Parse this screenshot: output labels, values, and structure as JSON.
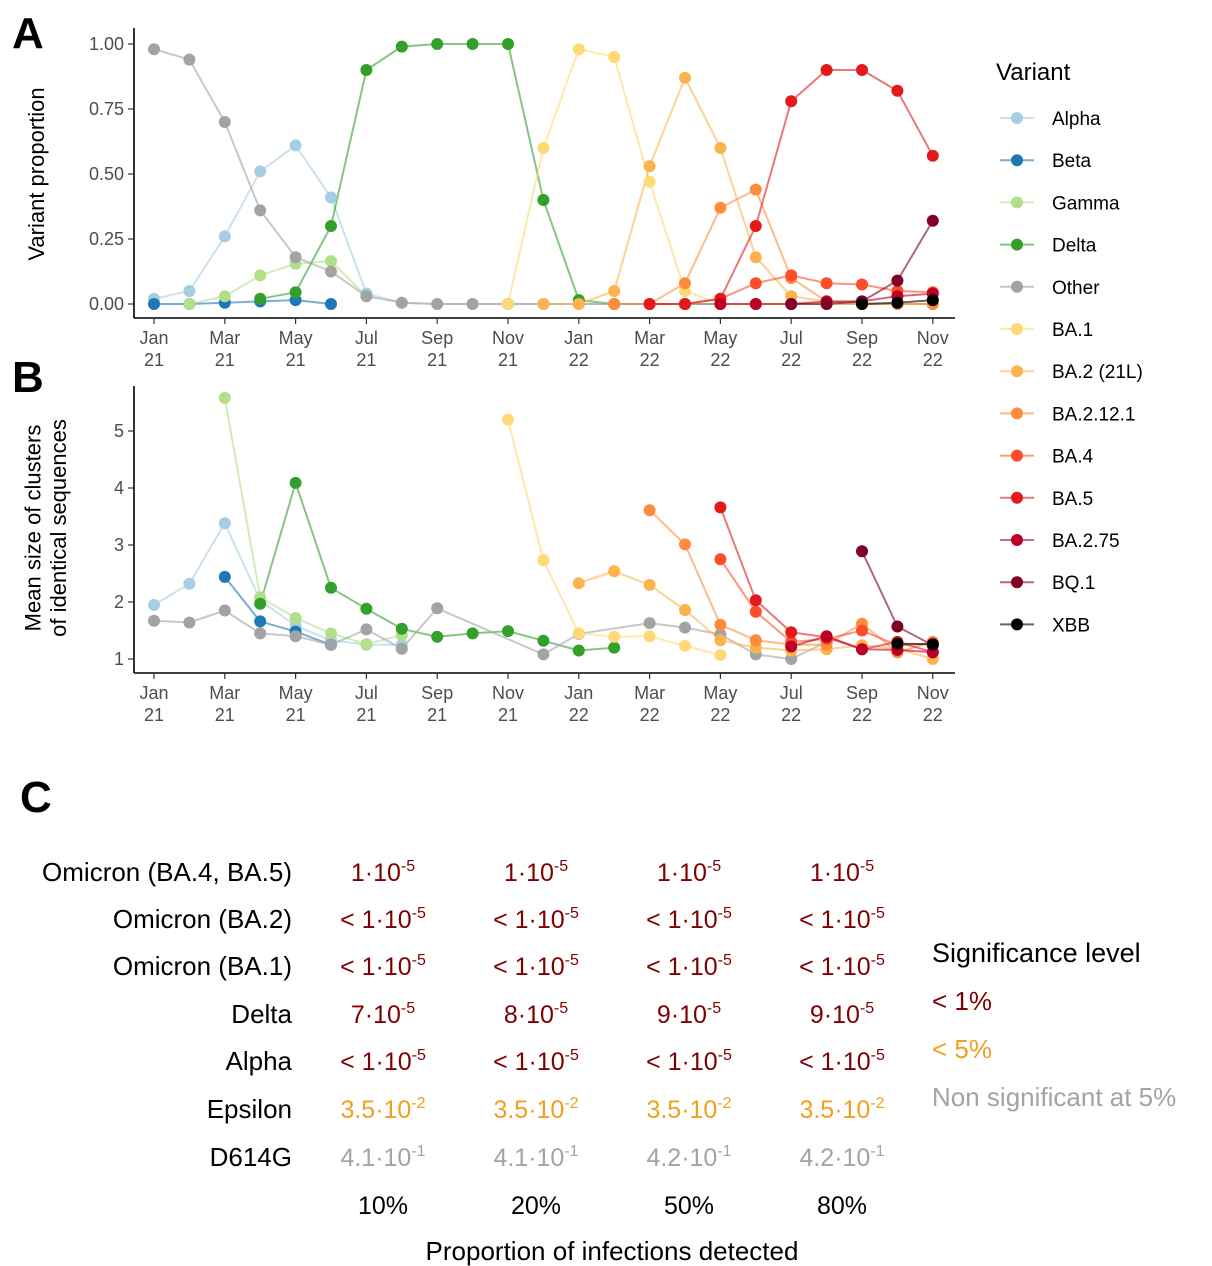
{
  "colors": {
    "Alpha": "#a6cee3",
    "Beta": "#1f78b4",
    "Gamma": "#b2df8a",
    "Delta": "#33a02c",
    "Other": "#a3a3a3",
    "BA.1": "#fed976",
    "BA.2 (21L)": "#feb24c",
    "BA.2.12.1": "#fd8d3c",
    "BA.4": "#fc4e2a",
    "BA.5": "#e31a1c",
    "BA.2.75": "#bd0026",
    "BQ.1": "#800026",
    "XBB": "#000000",
    "sig1": "#7f0000",
    "sig5": "#f0a020",
    "nonsig": "#a3a3a3"
  },
  "panels": {
    "a": "A",
    "b": "B",
    "c": "C"
  },
  "months_x": [
    "Jan 21",
    "Feb 21",
    "Mar 21",
    "Apr 21",
    "May 21",
    "Jun 21",
    "Jul 21",
    "Aug 21",
    "Sep 21",
    "Oct 21",
    "Nov 21",
    "Dec 21",
    "Jan 22",
    "Feb 22",
    "Mar 22",
    "Apr 22",
    "May 22",
    "Jun 22",
    "Jul 22",
    "Aug 22",
    "Sep 22",
    "Oct 22",
    "Nov 22"
  ],
  "x_ticks": [
    {
      "line1": "Jan",
      "line2": "21",
      "i": 0
    },
    {
      "line1": "Mar",
      "line2": "21",
      "i": 2
    },
    {
      "line1": "May",
      "line2": "21",
      "i": 4
    },
    {
      "line1": "Jul",
      "line2": "21",
      "i": 6
    },
    {
      "line1": "Sep",
      "line2": "21",
      "i": 8
    },
    {
      "line1": "Nov",
      "line2": "21",
      "i": 10
    },
    {
      "line1": "Jan",
      "line2": "22",
      "i": 12
    },
    {
      "line1": "Mar",
      "line2": "22",
      "i": 14
    },
    {
      "line1": "May",
      "line2": "22",
      "i": 16
    },
    {
      "line1": "Jul",
      "line2": "22",
      "i": 18
    },
    {
      "line1": "Sep",
      "line2": "22",
      "i": 20
    },
    {
      "line1": "Nov",
      "line2": "22",
      "i": 22
    }
  ],
  "legend": {
    "title": "Variant",
    "items": [
      "Alpha",
      "Beta",
      "Gamma",
      "Delta",
      "Other",
      "BA.1",
      "BA.2 (21L)",
      "BA.2.12.1",
      "BA.4",
      "BA.5",
      "BA.2.75",
      "BQ.1",
      "XBB"
    ]
  },
  "chart_data": [
    {
      "type": "line",
      "ylabel": "Variant proportion",
      "ylim": [
        0,
        1
      ],
      "yticks": [
        "0.00",
        "0.25",
        "0.50",
        "0.75",
        "1.00"
      ],
      "series": [
        {
          "name": "Alpha",
          "x": [
            0,
            1,
            2,
            3,
            4,
            5,
            6,
            7,
            8,
            9,
            10,
            11,
            12,
            13,
            14,
            15,
            16,
            17,
            18,
            19,
            20,
            21,
            22
          ],
          "y": [
            0.02,
            0.05,
            0.26,
            0.51,
            0.61,
            0.41,
            0.04,
            0.005,
            0.0,
            0.0,
            0.0,
            0.0,
            0.0,
            0.0,
            0.0,
            0.0,
            0.0,
            0.0,
            0.0,
            0.0,
            0.0,
            0.0,
            0.0
          ]
        },
        {
          "name": "Beta",
          "x": [
            0,
            1,
            2,
            3,
            4,
            5
          ],
          "y": [
            0.0,
            0.0,
            0.005,
            0.01,
            0.015,
            0.0
          ]
        },
        {
          "name": "Gamma",
          "x": [
            1,
            2,
            3,
            4,
            5,
            6
          ],
          "y": [
            0.0,
            0.03,
            0.11,
            0.155,
            0.165,
            0.03
          ]
        },
        {
          "name": "Delta",
          "x": [
            3,
            4,
            5,
            6,
            7,
            8,
            9,
            10,
            11,
            12,
            13,
            14,
            15,
            16,
            17,
            18,
            19,
            20,
            21,
            22
          ],
          "y": [
            0.02,
            0.045,
            0.3,
            0.9,
            0.99,
            1.0,
            1.0,
            1.0,
            0.4,
            0.015,
            0.0,
            0.0,
            0.0,
            0.0,
            0.0,
            0.0,
            0.0,
            0.0,
            0.0,
            0.0
          ]
        },
        {
          "name": "Other",
          "x": [
            0,
            1,
            2,
            3,
            4,
            5,
            6,
            7,
            8,
            9,
            10,
            11,
            12,
            13,
            14,
            15,
            16,
            17,
            18,
            19,
            20,
            21,
            22
          ],
          "y": [
            0.98,
            0.94,
            0.7,
            0.36,
            0.18,
            0.125,
            0.03,
            0.005,
            0.0,
            0.0,
            0.0,
            0.0,
            0.0,
            0.0,
            0.0,
            0.0,
            0.0,
            0.0,
            0.0,
            0.0,
            0.0,
            0.0,
            0.0
          ]
        },
        {
          "name": "BA.1",
          "x": [
            10,
            11,
            12,
            13,
            14,
            15,
            16,
            17,
            18,
            19,
            20,
            21,
            22
          ],
          "y": [
            0.0,
            0.6,
            0.98,
            0.95,
            0.47,
            0.05,
            0.0,
            0.0,
            0.0,
            0.0,
            0.0,
            0.0,
            0.0
          ]
        },
        {
          "name": "BA.2 (21L)",
          "x": [
            11,
            12,
            13,
            14,
            15,
            16,
            17,
            18,
            19,
            20,
            21,
            22
          ],
          "y": [
            0.0,
            0.0,
            0.05,
            0.53,
            0.87,
            0.6,
            0.18,
            0.03,
            0.01,
            0.0,
            0.0,
            0.0
          ]
        },
        {
          "name": "BA.2.12.1",
          "x": [
            13,
            14,
            15,
            16,
            17,
            18,
            19,
            20,
            21,
            22
          ],
          "y": [
            0.0,
            0.0,
            0.08,
            0.37,
            0.44,
            0.1,
            0.01,
            0.0,
            0.0,
            0.0
          ]
        },
        {
          "name": "BA.4",
          "x": [
            14,
            15,
            16,
            17,
            18,
            19,
            20,
            21,
            22
          ],
          "y": [
            0.0,
            0.0,
            0.02,
            0.08,
            0.11,
            0.08,
            0.075,
            0.05,
            0.045
          ]
        },
        {
          "name": "BA.5",
          "x": [
            14,
            15,
            16,
            17,
            18,
            19,
            20,
            21,
            22
          ],
          "y": [
            0.0,
            0.0,
            0.02,
            0.3,
            0.78,
            0.9,
            0.9,
            0.82,
            0.57
          ]
        },
        {
          "name": "BA.2.75",
          "x": [
            16,
            17,
            18,
            19,
            20,
            21,
            22
          ],
          "y": [
            0.0,
            0.0,
            0.0,
            0.01,
            0.01,
            0.03,
            0.04
          ]
        },
        {
          "name": "BQ.1",
          "x": [
            18,
            19,
            20,
            21,
            22
          ],
          "y": [
            0.0,
            0.0,
            0.01,
            0.09,
            0.32
          ]
        },
        {
          "name": "XBB",
          "x": [
            20,
            21,
            22
          ],
          "y": [
            0.0,
            0.005,
            0.015
          ]
        }
      ]
    },
    {
      "type": "line",
      "ylabel": "Mean size of clusters\nof identical sequences",
      "ylim": [
        0.75,
        5.75
      ],
      "yticks": [
        "1",
        "2",
        "3",
        "4",
        "5"
      ],
      "series": [
        {
          "name": "Alpha",
          "x": [
            0,
            1,
            2,
            3,
            4,
            5,
            6,
            7
          ],
          "y": [
            1.95,
            2.32,
            3.38,
            2.03,
            1.58,
            1.33,
            1.25,
            1.25
          ]
        },
        {
          "name": "Beta",
          "x": [
            2,
            3,
            4,
            5
          ],
          "y": [
            2.44,
            1.66,
            1.48,
            1.25
          ]
        },
        {
          "name": "Gamma",
          "x": [
            2,
            3,
            4,
            5,
            6,
            7
          ],
          "y": [
            5.58,
            2.08,
            1.72,
            1.45,
            1.26,
            1.42
          ]
        },
        {
          "name": "Delta",
          "x": [
            3,
            4,
            5,
            6,
            7,
            8,
            9,
            10,
            11,
            12,
            13
          ],
          "y": [
            1.97,
            4.09,
            2.25,
            1.88,
            1.53,
            1.39,
            1.45,
            1.49,
            1.32,
            1.15,
            1.2
          ]
        },
        {
          "name": "Other",
          "x": [
            0,
            1,
            2,
            3,
            4,
            5,
            6,
            7,
            8,
            11,
            12,
            14,
            15,
            16,
            17,
            18,
            19
          ],
          "y": [
            1.67,
            1.64,
            1.85,
            1.45,
            1.4,
            1.25,
            1.52,
            1.18,
            1.89,
            1.08,
            1.44,
            1.63,
            1.55,
            1.43,
            1.08,
            1.0,
            1.3
          ]
        },
        {
          "name": "BA.1",
          "x": [
            10,
            11,
            12,
            13,
            14,
            15,
            16
          ],
          "y": [
            5.2,
            2.73,
            1.45,
            1.39,
            1.4,
            1.23,
            1.07
          ]
        },
        {
          "name": "BA.2 (21L)",
          "x": [
            12,
            13,
            14,
            15,
            16,
            17,
            18,
            19,
            20,
            21,
            22
          ],
          "y": [
            2.33,
            2.54,
            2.3,
            1.86,
            1.33,
            1.2,
            1.15,
            1.17,
            1.24,
            1.18,
            1.0
          ]
        },
        {
          "name": "BA.2.12.1",
          "x": [
            14,
            15,
            16,
            17,
            18,
            19,
            20,
            21,
            22
          ],
          "y": [
            3.61,
            3.01,
            1.6,
            1.33,
            1.25,
            1.25,
            1.62,
            1.12,
            1.3
          ]
        },
        {
          "name": "BA.4",
          "x": [
            16,
            17,
            18,
            19,
            20,
            21,
            22
          ],
          "y": [
            2.75,
            1.83,
            1.3,
            1.35,
            1.5,
            1.24,
            1.27
          ]
        },
        {
          "name": "BA.5",
          "x": [
            16,
            17,
            18,
            19,
            20,
            21,
            22
          ],
          "y": [
            3.66,
            2.03,
            1.47,
            1.38,
            1.17,
            1.3,
            1.12
          ]
        },
        {
          "name": "BA.2.75",
          "x": [
            18,
            19,
            20,
            21,
            22
          ],
          "y": [
            1.22,
            1.4,
            1.17,
            1.16,
            1.12
          ]
        },
        {
          "name": "BQ.1",
          "x": [
            20,
            21,
            22
          ],
          "y": [
            2.89,
            1.57,
            1.24
          ]
        },
        {
          "name": "XBB",
          "x": [
            21,
            22
          ],
          "y": [
            1.27,
            1.26
          ]
        }
      ]
    },
    {
      "type": "table",
      "columns": [
        "10%",
        "20%",
        "50%",
        "80%"
      ],
      "xlabel": "Proportion of infections detected",
      "rows": [
        {
          "label": "Omicron (BA.4, BA.5)",
          "cells": [
            {
              "pre": "",
              "m": "1",
              "e": "-5",
              "sig": "sig1"
            },
            {
              "pre": "",
              "m": "1",
              "e": "-5",
              "sig": "sig1"
            },
            {
              "pre": "",
              "m": "1",
              "e": "-5",
              "sig": "sig1"
            },
            {
              "pre": "",
              "m": "1",
              "e": "-5",
              "sig": "sig1"
            }
          ]
        },
        {
          "label": "Omicron (BA.2)",
          "cells": [
            {
              "pre": "< ",
              "m": "1",
              "e": "-5",
              "sig": "sig1"
            },
            {
              "pre": "< ",
              "m": "1",
              "e": "-5",
              "sig": "sig1"
            },
            {
              "pre": "< ",
              "m": "1",
              "e": "-5",
              "sig": "sig1"
            },
            {
              "pre": "< ",
              "m": "1",
              "e": "-5",
              "sig": "sig1"
            }
          ]
        },
        {
          "label": "Omicron (BA.1)",
          "cells": [
            {
              "pre": "< ",
              "m": "1",
              "e": "-5",
              "sig": "sig1"
            },
            {
              "pre": "< ",
              "m": "1",
              "e": "-5",
              "sig": "sig1"
            },
            {
              "pre": "< ",
              "m": "1",
              "e": "-5",
              "sig": "sig1"
            },
            {
              "pre": "< ",
              "m": "1",
              "e": "-5",
              "sig": "sig1"
            }
          ]
        },
        {
          "label": "Delta",
          "cells": [
            {
              "pre": "",
              "m": "7",
              "e": "-5",
              "sig": "sig1"
            },
            {
              "pre": "",
              "m": "8",
              "e": "-5",
              "sig": "sig1"
            },
            {
              "pre": "",
              "m": "9",
              "e": "-5",
              "sig": "sig1"
            },
            {
              "pre": "",
              "m": "9",
              "e": "-5",
              "sig": "sig1"
            }
          ]
        },
        {
          "label": "Alpha",
          "cells": [
            {
              "pre": "< ",
              "m": "1",
              "e": "-5",
              "sig": "sig1"
            },
            {
              "pre": "< ",
              "m": "1",
              "e": "-5",
              "sig": "sig1"
            },
            {
              "pre": "< ",
              "m": "1",
              "e": "-5",
              "sig": "sig1"
            },
            {
              "pre": "< ",
              "m": "1",
              "e": "-5",
              "sig": "sig1"
            }
          ]
        },
        {
          "label": "Epsilon",
          "cells": [
            {
              "pre": "",
              "m": "3.5",
              "e": "-2",
              "sig": "sig5"
            },
            {
              "pre": "",
              "m": "3.5",
              "e": "-2",
              "sig": "sig5"
            },
            {
              "pre": "",
              "m": "3.5",
              "e": "-2",
              "sig": "sig5"
            },
            {
              "pre": "",
              "m": "3.5",
              "e": "-2",
              "sig": "sig5"
            }
          ]
        },
        {
          "label": "D614G",
          "cells": [
            {
              "pre": "",
              "m": "4.1",
              "e": "-1",
              "sig": "nonsig"
            },
            {
              "pre": "",
              "m": "4.1",
              "e": "-1",
              "sig": "nonsig"
            },
            {
              "pre": "",
              "m": "4.2",
              "e": "-1",
              "sig": "nonsig"
            },
            {
              "pre": "",
              "m": "4.2",
              "e": "-1",
              "sig": "nonsig"
            }
          ]
        }
      ],
      "legend": {
        "title": "Significance level",
        "items": [
          {
            "label": "< 1%",
            "sig": "sig1"
          },
          {
            "label": "< 5%",
            "sig": "sig5"
          },
          {
            "label": "Non significant at 5%",
            "sig": "nonsig"
          }
        ]
      }
    }
  ]
}
